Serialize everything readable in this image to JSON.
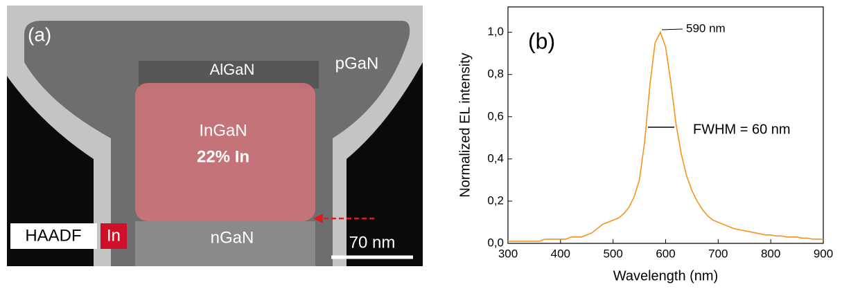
{
  "panel_a": {
    "label": "(a)",
    "regions": [
      "AlGaN",
      "pGaN",
      "InGaN",
      "22% In",
      "nGaN"
    ],
    "legend": [
      "HAADF",
      "In"
    ],
    "scale_bar": "70 nm"
  },
  "chart_data": {
    "type": "line",
    "label": "(b)",
    "xlabel": "Wavelength (nm)",
    "ylabel": "Normalized EL intensity",
    "annotations": [
      "590 nm",
      "FWHM = 60 nm"
    ],
    "color": "#f7931e",
    "x": [
      300,
      310,
      320,
      330,
      340,
      350,
      360,
      370,
      380,
      390,
      400,
      410,
      420,
      430,
      440,
      450,
      460,
      470,
      480,
      490,
      500,
      510,
      520,
      530,
      540,
      550,
      560,
      570,
      580,
      590,
      600,
      610,
      620,
      630,
      640,
      650,
      660,
      670,
      680,
      690,
      700,
      710,
      720,
      730,
      740,
      750,
      760,
      770,
      780,
      790,
      800,
      810,
      820,
      830,
      840,
      850,
      860,
      870,
      880,
      890,
      900
    ],
    "values": [
      0.01,
      0.01,
      0.01,
      0.01,
      0.01,
      0.01,
      0.01,
      0.02,
      0.02,
      0.02,
      0.02,
      0.02,
      0.03,
      0.03,
      0.03,
      0.04,
      0.05,
      0.07,
      0.09,
      0.1,
      0.11,
      0.12,
      0.14,
      0.17,
      0.22,
      0.3,
      0.48,
      0.75,
      0.95,
      1.0,
      0.93,
      0.76,
      0.56,
      0.42,
      0.32,
      0.25,
      0.2,
      0.16,
      0.13,
      0.11,
      0.1,
      0.09,
      0.08,
      0.07,
      0.065,
      0.06,
      0.055,
      0.05,
      0.045,
      0.04,
      0.04,
      0.035,
      0.035,
      0.03,
      0.03,
      0.03,
      0.025,
      0.025,
      0.02,
      0.02,
      0.02
    ],
    "xlim": [
      300,
      900
    ],
    "xticks": [
      300,
      400,
      500,
      600,
      700,
      800,
      900
    ],
    "ylim": [
      0,
      1.12
    ],
    "yticks": [
      {
        "value": 0,
        "label": "0,0"
      },
      {
        "value": 0.2,
        "label": "0,2"
      },
      {
        "value": 0.4,
        "label": "0,4"
      },
      {
        "value": 0.6,
        "label": "0,6"
      },
      {
        "value": 0.8,
        "label": "0,8"
      },
      {
        "value": 1.0,
        "label": "1,0"
      }
    ]
  }
}
